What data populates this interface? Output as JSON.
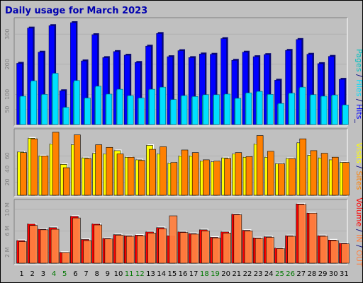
{
  "title": "Daily usage for March 2023",
  "colors": {
    "hits": "#0000ff",
    "hits_shadow": "#0b0b74",
    "files": "#00e0ff",
    "pages": "#00c0c0",
    "visits": "#ffff00",
    "sites": "#ff8000",
    "volume_in": "#ff0000",
    "volume_out": "#ff8040",
    "panel_bg": "#c0c0c0",
    "weekend": "#007800",
    "weekday": "#000000"
  },
  "legends": {
    "hits_panel": [
      {
        "text": "Pages",
        "color": "#00c0c0"
      },
      {
        "text": " / ",
        "color": "#000080"
      },
      {
        "text": "Files",
        "color": "#00e0ff"
      },
      {
        "text": " / ",
        "color": "#000080"
      },
      {
        "text": "Hits",
        "color": "#0000ff"
      },
      {
        "text": "_",
        "color": "#000080"
      }
    ],
    "visits_panel": [
      {
        "text": "Visits",
        "color": "#ffff00"
      },
      {
        "text": " / ",
        "color": "#000080"
      },
      {
        "text": "Sites",
        "color": "#ff8000"
      }
    ],
    "volume_panel": [
      {
        "text": "Volume",
        "color": "#ff0000"
      },
      {
        "text": " / ",
        "color": "#000080"
      },
      {
        "text": "IN",
        "color": "#ff8040"
      },
      {
        "text": " / ",
        "color": "#000080"
      },
      {
        "text": "OUT",
        "color": "#ff8040"
      }
    ]
  },
  "chart_data": {
    "type": "bar",
    "categories": [
      "1",
      "2",
      "3",
      "4",
      "5",
      "6",
      "7",
      "8",
      "9",
      "10",
      "11",
      "12",
      "13",
      "14",
      "15",
      "16",
      "17",
      "18",
      "19",
      "20",
      "21",
      "22",
      "23",
      "24",
      "25",
      "26",
      "27",
      "28",
      "29",
      "30",
      "31"
    ],
    "weekend_days": [
      "4",
      "5",
      "11",
      "12",
      "18",
      "19",
      "25",
      "26"
    ],
    "panels": [
      {
        "id": "hits_panel",
        "yticks": [
          50,
          100,
          200,
          300
        ],
        "ytick_labels": [
          "50",
          "100",
          "200",
          "300"
        ],
        "ylim": [
          0,
          345
        ],
        "series": [
          {
            "key": "hits",
            "values": [
              203,
              320,
              240,
              328,
              112,
              338,
              211,
              298,
              222,
              242,
              230,
              206,
              260,
              302,
              225,
              245,
              222,
              234,
              233,
              285,
              213,
              240,
              225,
              232,
              147,
              246,
              282,
              233,
              202,
              226,
              150
            ]
          },
          {
            "key": "files",
            "values": [
              94,
              145,
              100,
              170,
              57,
              146,
              88,
              127,
              101,
              117,
              96,
              88,
              117,
              124,
              83,
              96,
              93,
              99,
              99,
              101,
              87,
              105,
              110,
              100,
              70,
              104,
              124,
              99,
              94,
              98,
              65
            ]
          },
          {
            "key": "pages",
            "values": [
              92,
              140,
              98,
              165,
              55,
              140,
              86,
              124,
              98,
              114,
              94,
              86,
              115,
              122,
              80,
              94,
              90,
              96,
              96,
              99,
              85,
              103,
              107,
              97,
              67,
              101,
              121,
              96,
              92,
              95,
              63
            ]
          }
        ]
      },
      {
        "id": "visits_panel",
        "yticks": [
          20,
          40,
          60
        ],
        "ytick_labels": [
          "20",
          "40",
          "60"
        ],
        "ylim": [
          0,
          97
        ],
        "series": [
          {
            "key": "visits",
            "values": [
              66,
              87,
              60,
              78,
              47,
              77,
              57,
              64,
              63,
              68,
              58,
              54,
              76,
              63,
              49,
              60,
              60,
              52,
              51,
              57,
              63,
              58,
              78,
              58,
              48,
              56,
              80,
              61,
              57,
              54,
              50
            ]
          },
          {
            "key": "sites",
            "values": [
              65,
              86,
              60,
              96,
              42,
              92,
              56,
              77,
              73,
              63,
              58,
              53,
              70,
              74,
              50,
              69,
              65,
              54,
              52,
              56,
              65,
              59,
              91,
              67,
              48,
              56,
              86,
              68,
              64,
              58,
              50
            ]
          }
        ]
      },
      {
        "id": "volume_panel",
        "yticks": [
          2,
          6,
          10
        ],
        "ytick_labels": [
          "2 M",
          "6 M",
          "10 M"
        ],
        "ylim": [
          0,
          11.3
        ],
        "series": [
          {
            "key": "volume_in",
            "values": [
              4.2,
              7.3,
              6.3,
              6.6,
              2.0,
              8.7,
              4.4,
              7.3,
              4.6,
              5.3,
              5.1,
              5.2,
              5.8,
              6.6,
              5.1,
              5.8,
              5.5,
              6.2,
              4.8,
              5.8,
              9.1,
              6.1,
              4.7,
              4.9,
              2.8,
              5.1,
              11.0,
              9.3,
              5.1,
              4.3,
              3.7
            ]
          },
          {
            "key": "volume_out",
            "values": [
              4.0,
              7.0,
              6.2,
              6.3,
              2.0,
              8.4,
              4.2,
              7.1,
              4.5,
              5.2,
              5.0,
              5.1,
              5.6,
              6.4,
              8.8,
              5.7,
              5.4,
              6.0,
              4.7,
              5.6,
              9.0,
              6.0,
              4.6,
              4.8,
              2.7,
              5.0,
              10.9,
              9.3,
              5.0,
              4.2,
              3.6
            ]
          }
        ]
      }
    ]
  }
}
